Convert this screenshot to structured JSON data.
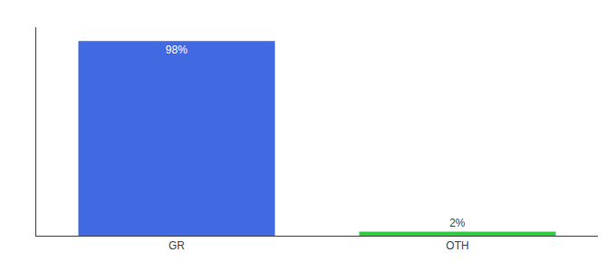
{
  "chart_data": {
    "type": "bar",
    "categories": [
      "GR",
      "OTH"
    ],
    "values": [
      98,
      2
    ],
    "value_labels": [
      "98%",
      "2%"
    ],
    "data_labels": true,
    "colors": [
      "#4169e1",
      "#2ecc40"
    ],
    "ylim": [
      0,
      105
    ],
    "yticks": [],
    "tick_labels": "x",
    "grid": false
  }
}
